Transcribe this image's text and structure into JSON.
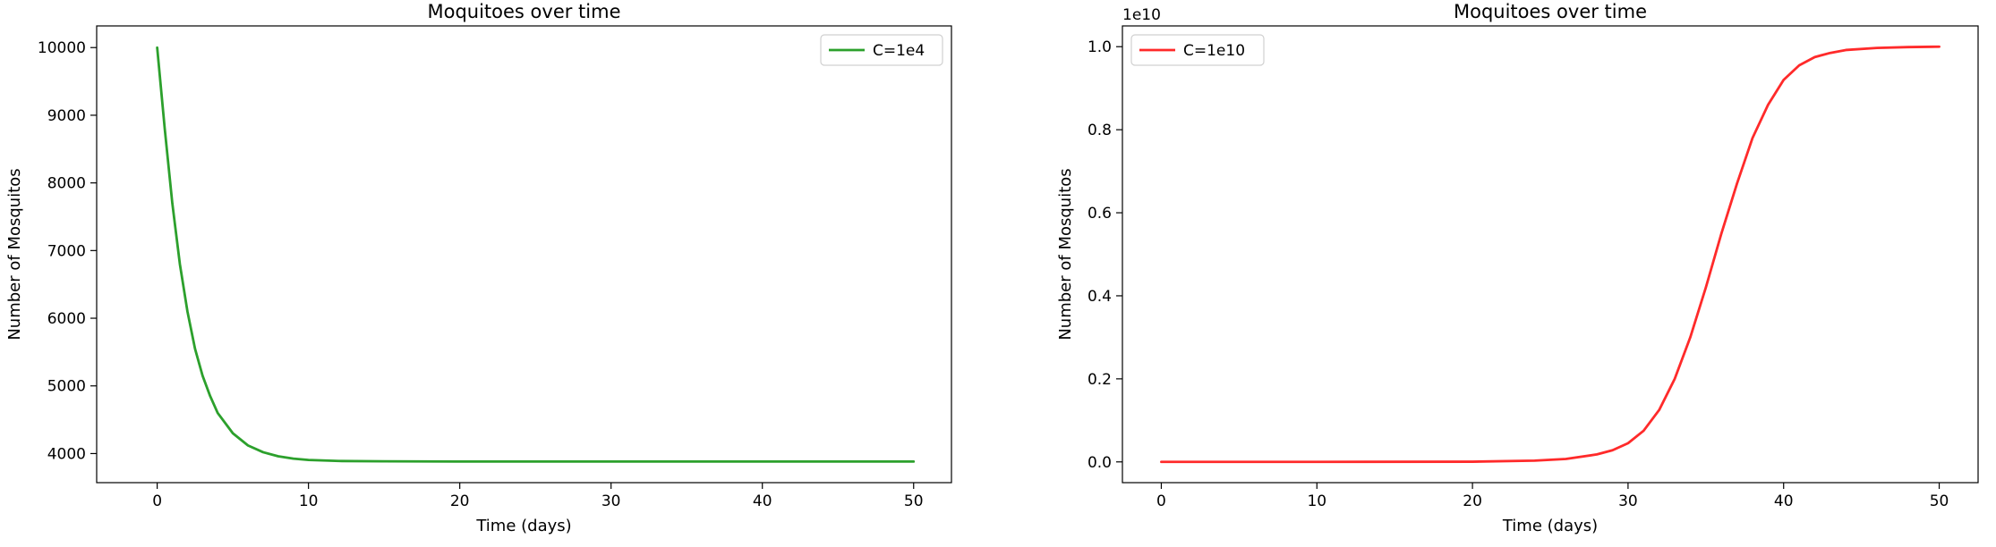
{
  "chart_data": [
    {
      "type": "line",
      "title": "Moquitoes over time",
      "xlabel": "Time (days)",
      "ylabel": "Number of Mosquitos",
      "xlim": [
        -4,
        52.5
      ],
      "ylim": [
        3570,
        10320
      ],
      "xticks": [
        0,
        10,
        20,
        30,
        40,
        50
      ],
      "xtick_labels": [
        "0",
        "10",
        "20",
        "30",
        "40",
        "50"
      ],
      "yticks": [
        4000,
        5000,
        6000,
        7000,
        8000,
        9000,
        10000
      ],
      "ytick_labels": [
        "4000",
        "5000",
        "6000",
        "7000",
        "8000",
        "9000",
        "10000"
      ],
      "offset_text": "",
      "legend_position": "upper right",
      "grid": false,
      "series": [
        {
          "name": "C=1e4",
          "color": "#2ca02c",
          "x": [
            0,
            0.5,
            1,
            1.5,
            2,
            2.5,
            3,
            3.5,
            4,
            5,
            6,
            7,
            8,
            9,
            10,
            12,
            15,
            20,
            30,
            40,
            50
          ],
          "y": [
            10000,
            8800,
            7700,
            6800,
            6100,
            5550,
            5150,
            4850,
            4600,
            4300,
            4120,
            4020,
            3960,
            3925,
            3905,
            3890,
            3885,
            3882,
            3882,
            3882,
            3882
          ]
        }
      ]
    },
    {
      "type": "line",
      "title": "Moquitoes over time",
      "xlabel": "Time (days)",
      "ylabel": "Number of Mosquitos",
      "xlim": [
        -2.5,
        52.5
      ],
      "ylim": [
        -0.05,
        1.05
      ],
      "xticks": [
        0,
        10,
        20,
        30,
        40,
        50
      ],
      "xtick_labels": [
        "0",
        "10",
        "20",
        "30",
        "40",
        "50"
      ],
      "yticks": [
        0.0,
        0.2,
        0.4,
        0.6,
        0.8,
        1.0
      ],
      "ytick_labels": [
        "0.0",
        "0.2",
        "0.4",
        "0.6",
        "0.8",
        "1.0"
      ],
      "offset_text": "1e10",
      "legend_position": "upper left",
      "grid": false,
      "series": [
        {
          "name": "C=1e10",
          "color": "#ff2a2a",
          "x": [
            0,
            10,
            20,
            24,
            26,
            28,
            29,
            30,
            31,
            32,
            33,
            34,
            35,
            36,
            37,
            38,
            39,
            40,
            41,
            42,
            43,
            44,
            46,
            48,
            50
          ],
          "y": [
            0,
            0,
            0.0005,
            0.003,
            0.007,
            0.018,
            0.028,
            0.045,
            0.075,
            0.125,
            0.2,
            0.3,
            0.42,
            0.55,
            0.67,
            0.78,
            0.86,
            0.92,
            0.955,
            0.975,
            0.985,
            0.992,
            0.997,
            0.999,
            1.0
          ]
        }
      ]
    }
  ]
}
